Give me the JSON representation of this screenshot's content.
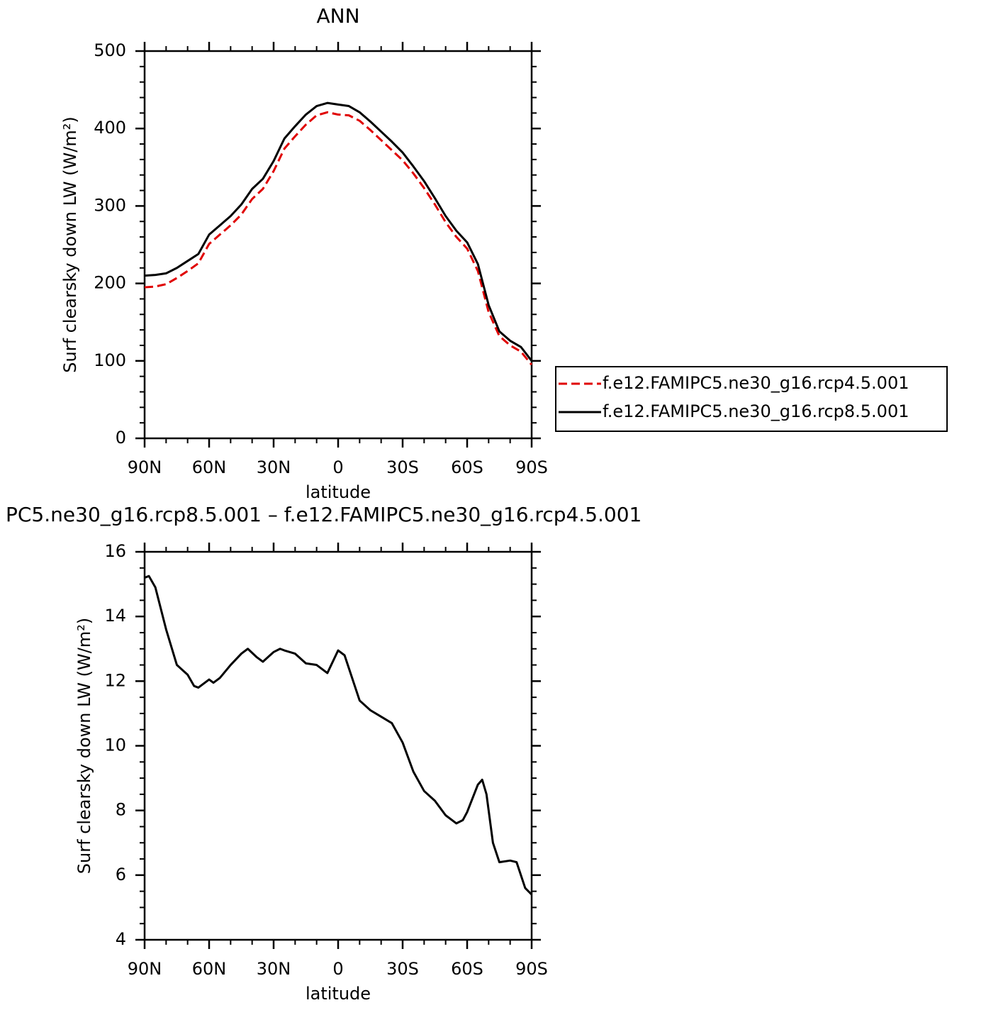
{
  "chart_data": [
    {
      "type": "line",
      "title": "ANN",
      "xlabel": "latitude",
      "ylabel": "Surf clearsky down LW (W/m²)",
      "x": [
        90,
        85,
        80,
        75,
        70,
        65,
        60,
        55,
        50,
        45,
        40,
        35,
        30,
        25,
        20,
        15,
        10,
        5,
        0,
        -5,
        -10,
        -15,
        -20,
        -25,
        -30,
        -35,
        -40,
        -45,
        -50,
        -55,
        -60,
        -65,
        -70,
        -75,
        -80,
        -85,
        -90
      ],
      "xlim": [
        90,
        -90
      ],
      "xticks": [
        {
          "value": 90,
          "label": "90N"
        },
        {
          "value": 60,
          "label": "60N"
        },
        {
          "value": 30,
          "label": "30N"
        },
        0,
        {
          "value": -30,
          "label": "30S"
        },
        {
          "value": -60,
          "label": "60S"
        },
        {
          "value": -90,
          "label": "90S"
        }
      ],
      "ylim": [
        0,
        500
      ],
      "yticks": [
        0,
        100,
        200,
        300,
        400,
        500
      ],
      "legend": "right",
      "series": [
        {
          "name": "f.e12.FAMIPC5.ne30_g16.rcp4.5.001",
          "color": "#e00000",
          "dash": "dashed",
          "values": [
            195,
            196,
            199,
            207,
            216,
            226,
            251,
            263,
            275,
            289,
            309,
            322,
            345,
            374,
            390,
            405,
            417,
            421,
            418,
            417,
            410,
            398,
            385,
            372,
            359,
            342,
            323,
            302,
            279,
            260,
            245,
            216,
            163,
            132,
            120,
            112,
            95
          ]
        },
        {
          "name": "f.e12.FAMIPC5.ne30_g16.rcp8.5.001",
          "color": "#000000",
          "dash": "solid",
          "values": [
            210,
            211,
            213,
            220,
            229,
            238,
            263,
            275,
            287,
            302,
            322,
            335,
            358,
            387,
            403,
            418,
            429,
            433,
            431,
            429,
            421,
            409,
            396,
            383,
            369,
            351,
            332,
            310,
            287,
            268,
            253,
            225,
            172,
            138,
            126,
            118,
            100
          ]
        }
      ]
    },
    {
      "type": "line",
      "title": "PC5.ne30_g16.rcp8.5.001 – f.e12.FAMIPC5.ne30_g16.rcp4.5.001",
      "xlabel": "latitude",
      "ylabel": "Surf clearsky down LW (W/m²)",
      "x": [
        90,
        88,
        85,
        80,
        75,
        70,
        67,
        65,
        60,
        58,
        55,
        50,
        45,
        42,
        38,
        35,
        30,
        27,
        25,
        20,
        15,
        10,
        5,
        0,
        -3,
        -5,
        -10,
        -15,
        -20,
        -25,
        -30,
        -35,
        -40,
        -45,
        -50,
        -55,
        -58,
        -60,
        -65,
        -67,
        -69,
        -72,
        -75,
        -80,
        -83,
        -87,
        -90
      ],
      "xlim": [
        90,
        -90
      ],
      "xticks": [
        {
          "value": 90,
          "label": "90N"
        },
        {
          "value": 60,
          "label": "60N"
        },
        {
          "value": 30,
          "label": "30N"
        },
        0,
        {
          "value": -30,
          "label": "30S"
        },
        {
          "value": -60,
          "label": "60S"
        },
        {
          "value": -90,
          "label": "90S"
        }
      ],
      "ylim": [
        4,
        16
      ],
      "yticks": [
        4,
        6,
        8,
        10,
        12,
        14,
        16
      ],
      "series": [
        {
          "color": "#000000",
          "dash": "solid",
          "values": [
            15.2,
            15.25,
            14.9,
            13.6,
            12.5,
            12.2,
            11.85,
            11.8,
            12.05,
            11.95,
            12.1,
            12.5,
            12.85,
            13.0,
            12.75,
            12.6,
            12.9,
            13.0,
            12.95,
            12.85,
            12.55,
            12.5,
            12.25,
            12.95,
            12.8,
            12.4,
            11.4,
            11.1,
            10.9,
            10.7,
            10.1,
            9.2,
            8.6,
            8.3,
            7.85,
            7.6,
            7.7,
            7.95,
            8.8,
            8.95,
            8.5,
            7.0,
            6.4,
            6.45,
            6.4,
            5.6,
            5.4
          ]
        }
      ]
    }
  ]
}
